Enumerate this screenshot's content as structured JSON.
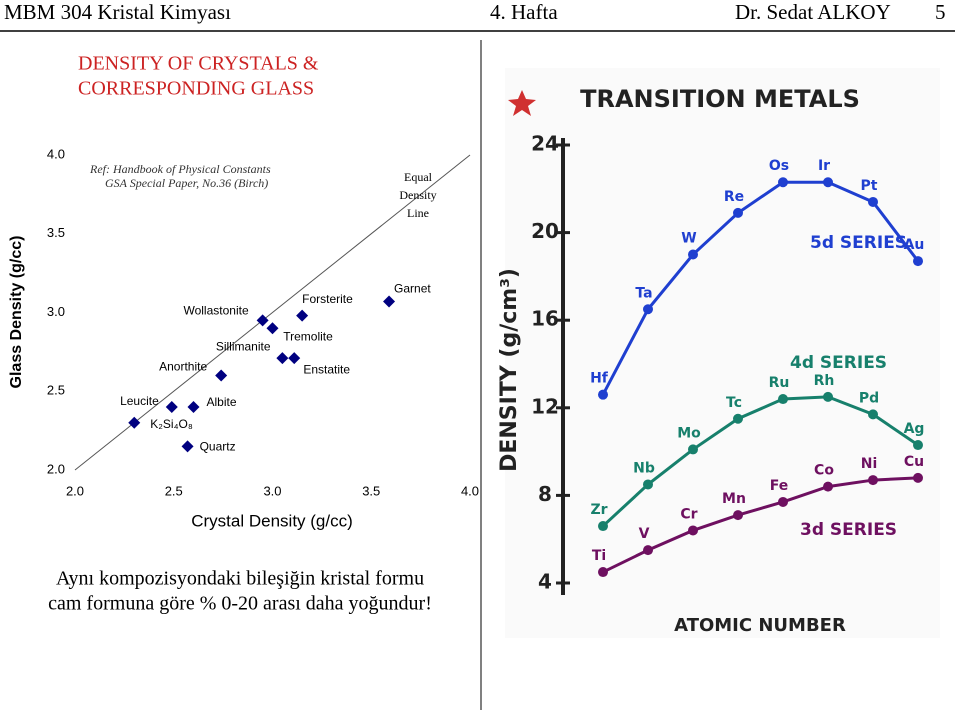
{
  "header": {
    "course": "MBM 304 Kristal Kimyası",
    "week": "4. Hafta",
    "author": "Dr. Sedat ALKOY",
    "page": "5"
  },
  "footer": [
    "Aynı kompozisyondaki bileşiğin kristal formu",
    "cam formuna göre % 0-20 arası daha yoğundur!"
  ],
  "chart_data": [
    {
      "type": "scatter",
      "title": [
        "DENSITY OF CRYSTALS &",
        "CORRESPONDING GLASS"
      ],
      "x_label": "Crystal Density (g/cc)",
      "y_label": "Glass Density (g/cc)",
      "note": [
        "Ref: Handbook of Physical Constants",
        "GSA Special Paper, No.36 (Birch)"
      ],
      "reference_line": {
        "label": [
          "Equal",
          "Density",
          "Line"
        ],
        "x": [
          2,
          4
        ],
        "y": [
          2,
          4
        ]
      },
      "labels": [
        "K₂Si₄O₈",
        "Leucite",
        "Albite",
        "Quartz",
        "Anorthite",
        "Wollastonite",
        "Sillimanite",
        "Forsterite",
        "Enstatite",
        "Tremolite",
        "Garnet"
      ],
      "x": [
        2.3,
        2.49,
        2.6,
        2.57,
        2.74,
        2.95,
        3.0,
        3.15,
        3.05,
        3.11,
        3.59
      ],
      "values": [
        2.3,
        2.4,
        2.4,
        2.15,
        2.6,
        2.95,
        2.9,
        2.98,
        2.71,
        2.71,
        3.07
      ],
      "color": "#000080",
      "xlim": [
        2,
        4
      ],
      "ylim": [
        2,
        4
      ],
      "xticks": [
        {
          "value": 2,
          "label": "2.0"
        },
        {
          "value": 2.5,
          "label": "2.5"
        },
        {
          "value": 3,
          "label": "3.0"
        },
        {
          "value": 3.5,
          "label": "3.5"
        },
        {
          "value": 4,
          "label": "4.0"
        }
      ],
      "yticks": [
        {
          "value": 2,
          "label": "2.0"
        },
        {
          "value": 2.5,
          "label": "2.5"
        },
        {
          "value": 3,
          "label": "3.0"
        },
        {
          "value": 3.5,
          "label": "3.5"
        },
        {
          "value": 4,
          "label": "4.0"
        }
      ]
    },
    {
      "type": "line",
      "title": "TRANSITION METALS",
      "y_label": "DENSITY (g/cm³)",
      "x_label": "ATOMIC NUMBER",
      "categories": [
        null,
        null,
        null,
        null,
        null,
        null,
        null,
        null
      ],
      "ylim": [
        4,
        24
      ],
      "yticks": [
        4,
        8,
        12,
        16,
        20,
        24
      ],
      "series": [
        {
          "name": "5d SERIES",
          "color": "#1f3fd0",
          "point_labels": [
            "Hf",
            "Ta",
            "W",
            "Re",
            "Os",
            "Ir",
            "Pt",
            "Au"
          ],
          "values": [
            12.6,
            16.5,
            19.0,
            20.9,
            22.3,
            22.3,
            21.4,
            18.7
          ]
        },
        {
          "name": "4d SERIES",
          "color": "#17806c",
          "point_labels": [
            "Zr",
            "Nb",
            "Mo",
            "Tc",
            "Ru",
            "Rh",
            "Pd",
            "Ag"
          ],
          "values": [
            6.6,
            8.5,
            10.1,
            11.5,
            12.4,
            12.5,
            11.7,
            10.3
          ]
        },
        {
          "name": "3d SERIES",
          "color": "#6e1060",
          "point_labels": [
            "Ti",
            "V",
            "Cr",
            "Mn",
            "Fe",
            "Co",
            "Ni",
            "Cu"
          ],
          "values": [
            4.5,
            5.5,
            6.4,
            7.1,
            7.7,
            8.4,
            8.7,
            8.8
          ]
        }
      ]
    }
  ]
}
